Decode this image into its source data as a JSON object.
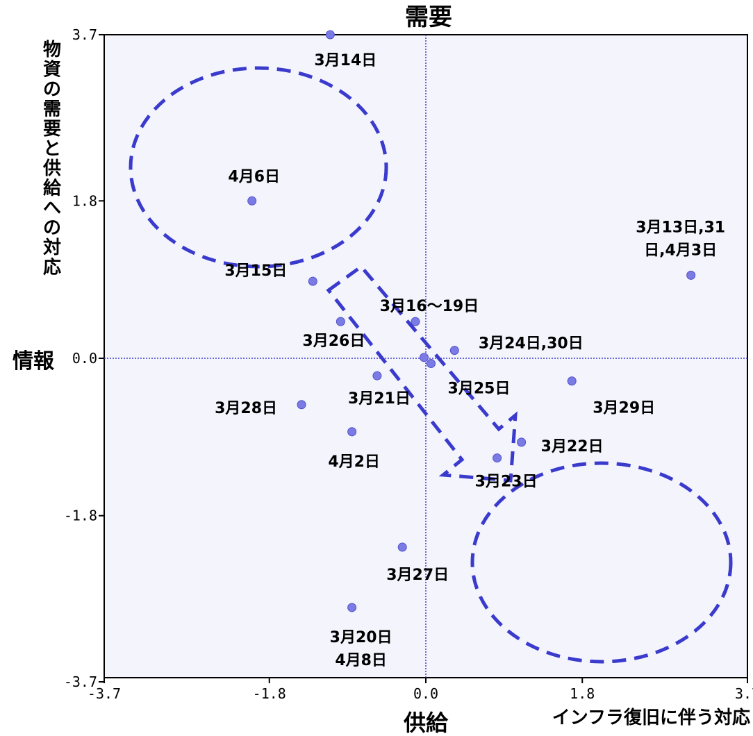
{
  "chart_data": {
    "type": "scatter",
    "labels": {
      "top": "需要",
      "left": "情報",
      "bottom": "供給",
      "bottom_right": "インフラ復旧に伴う対応",
      "y_title": "物資の需要と供給への対応"
    },
    "xlim": [
      -3.7,
      3.7
    ],
    "ylim": [
      -3.7,
      3.7
    ],
    "x_ticks": [
      "-3.7",
      "-1.8",
      "0.0",
      "1.8",
      "3.7"
    ],
    "y_ticks": [
      "3.7",
      "1.8",
      "0.0",
      "-1.8",
      "-3.7"
    ],
    "grid": false,
    "colors": {
      "point": "#7b7be6",
      "point_stroke": "#5050c8",
      "dash": "#3a3acd",
      "plot_bg": "#f4f4fd",
      "crosshair": "#3c3cc8"
    },
    "points": [
      {
        "x": -1.1,
        "y": 3.7,
        "label": "3月14日"
      },
      {
        "x": -2.0,
        "y": 1.8,
        "label": "4月6日"
      },
      {
        "x": 3.05,
        "y": 0.95,
        "label": "3月13日,31\n日,4月3日"
      },
      {
        "x": -1.3,
        "y": 0.88,
        "label": "3月15日"
      },
      {
        "x": -0.12,
        "y": 0.42,
        "label": "3月16～19日"
      },
      {
        "x": -0.98,
        "y": 0.42,
        "label": "3月26日"
      },
      {
        "x": 0.33,
        "y": 0.09,
        "label": "3月24日,30日"
      },
      {
        "x": -0.02,
        "y": 0.01,
        "label": ""
      },
      {
        "x": 0.06,
        "y": -0.06,
        "label": "3月25日"
      },
      {
        "x": -0.56,
        "y": -0.2,
        "label": "3月21日"
      },
      {
        "x": 1.68,
        "y": -0.26,
        "label": "3月29日"
      },
      {
        "x": -1.43,
        "y": -0.53,
        "label": "3月28日"
      },
      {
        "x": -0.85,
        "y": -0.84,
        "label": "4月2日"
      },
      {
        "x": 1.1,
        "y": -0.96,
        "label": "3月22日"
      },
      {
        "x": 0.82,
        "y": -1.14,
        "label": "3月23日"
      },
      {
        "x": -0.27,
        "y": -2.16,
        "label": "3月27日"
      },
      {
        "x": -0.85,
        "y": -2.85,
        "label": "3月20日\n4月8日"
      }
    ]
  }
}
